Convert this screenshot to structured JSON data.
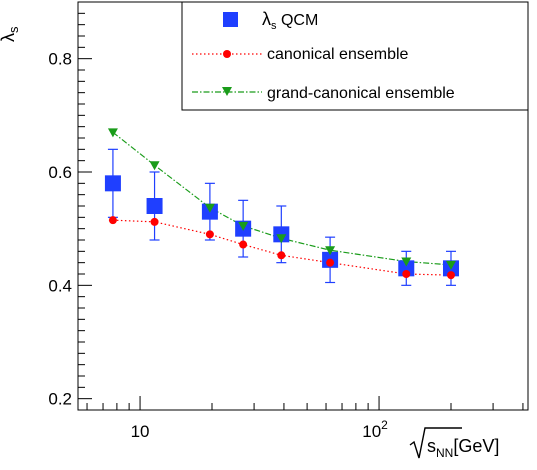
{
  "chart_data": {
    "type": "scatter",
    "ylabel": "λs",
    "xlabel": "√sNN[GeV]",
    "xscale": "log",
    "xlim": [
      5.5,
      420
    ],
    "ylim": [
      0.18,
      0.9
    ],
    "grid": false,
    "legend_position": "top-right",
    "y_ticks": [
      "0.2",
      "0.4",
      "0.6",
      "0.8"
    ],
    "y_tick_values": [
      0.2,
      0.4,
      0.6,
      0.8
    ],
    "x_tick_values": [
      10,
      100
    ],
    "series": [
      {
        "name": "λs QCM",
        "marker": "square",
        "color": "#1f3fff",
        "x": [
          7.7,
          11.5,
          19.6,
          27,
          39,
          62.4,
          130,
          200
        ],
        "y": [
          0.58,
          0.54,
          0.53,
          0.5,
          0.49,
          0.445,
          0.43,
          0.43
        ],
        "y_err_low": [
          0.06,
          0.06,
          0.05,
          0.05,
          0.05,
          0.04,
          0.03,
          0.03
        ],
        "y_err_high": [
          0.06,
          0.06,
          0.05,
          0.05,
          0.05,
          0.04,
          0.03,
          0.03
        ]
      },
      {
        "name": "canonical ensemble",
        "marker": "circle",
        "line": "dotted",
        "color": "#ff0000",
        "x": [
          7.7,
          11.5,
          19.6,
          27,
          39,
          62.4,
          130,
          200
        ],
        "y": [
          0.515,
          0.512,
          0.49,
          0.472,
          0.453,
          0.44,
          0.42,
          0.418
        ]
      },
      {
        "name": "grand-canonical ensemble",
        "marker": "triangle-down",
        "line": "dashdot",
        "color": "#1a9c1a",
        "x": [
          7.7,
          11.5,
          19.6,
          27,
          39,
          62.4,
          130,
          200
        ],
        "y": [
          0.67,
          0.612,
          0.537,
          0.505,
          0.483,
          0.462,
          0.442,
          0.436
        ]
      }
    ]
  }
}
